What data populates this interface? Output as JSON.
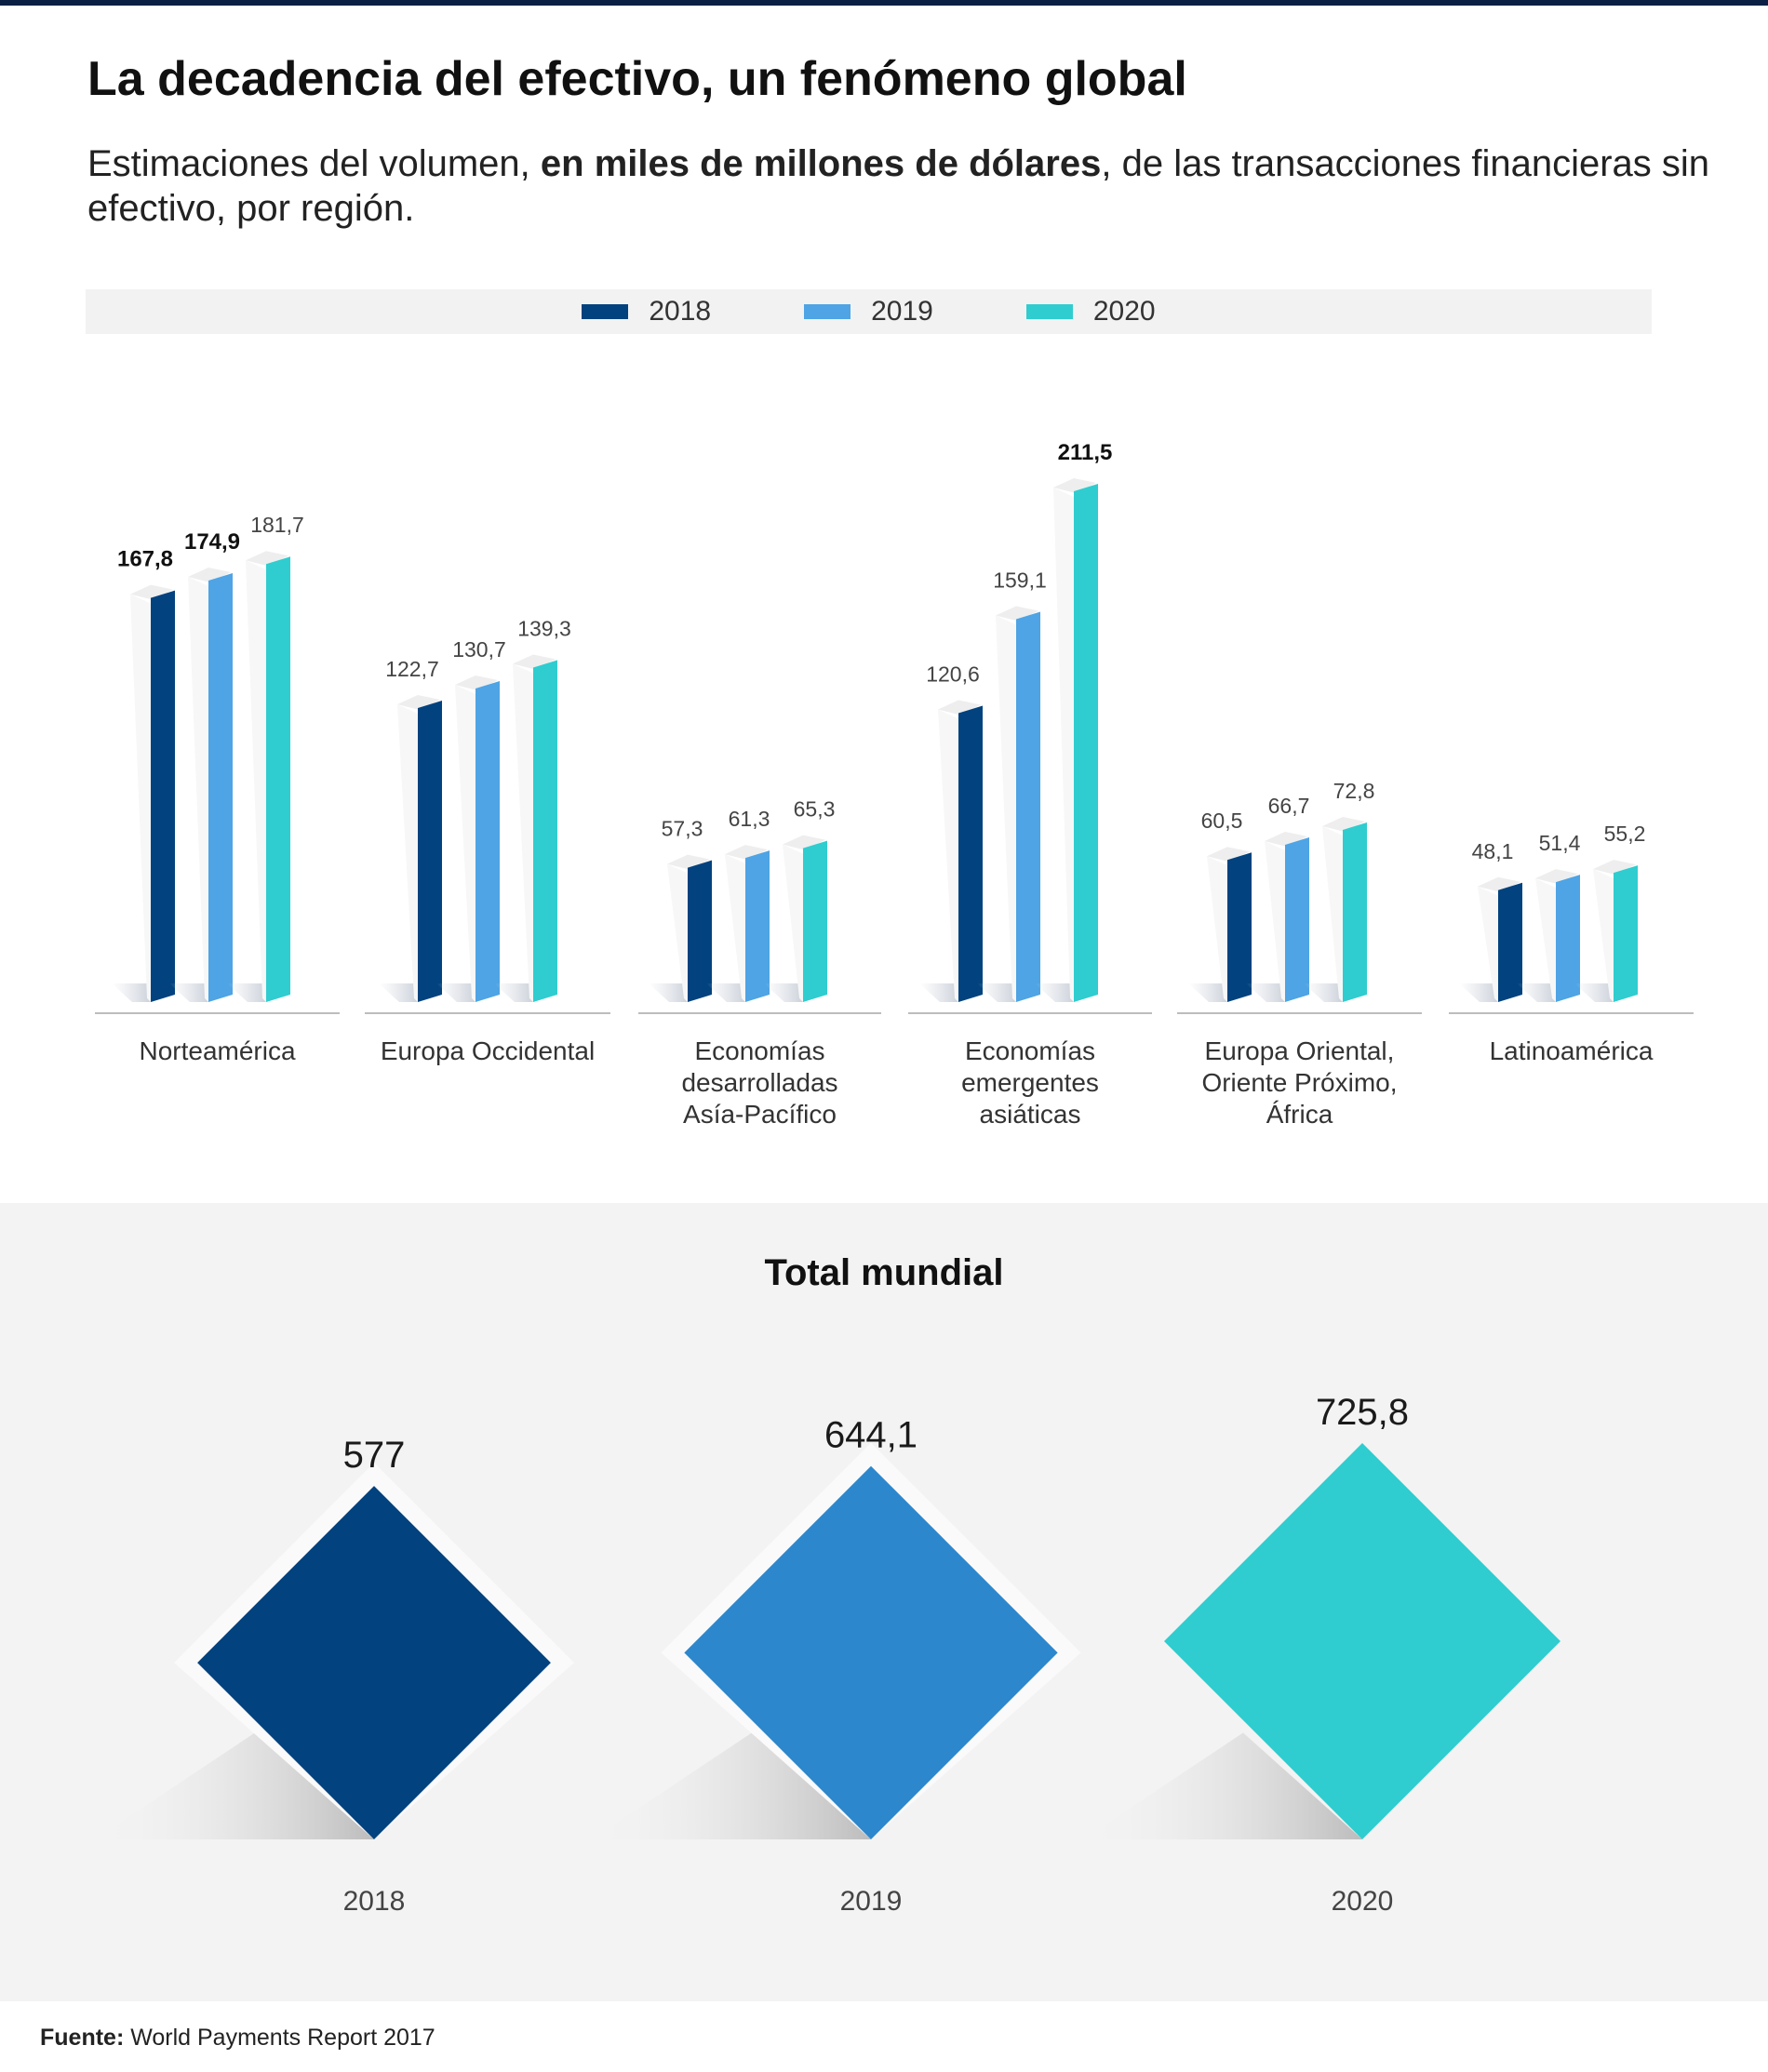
{
  "header": {
    "title": "La decadencia del efectivo, un fenómeno global",
    "subtitle_pre": "Estimaciones del volumen, ",
    "subtitle_bold": "en miles de millones de dólares",
    "subtitle_post": ", de las transacciones financieras sin efectivo, por región."
  },
  "colors": {
    "2018": "#02427e",
    "2019": "#4ea4e4",
    "2020": "#2fcdcf",
    "total_2019": "#2d87cc",
    "top_rule": "#0b1f44",
    "panel_background": "#f3f3f3"
  },
  "legend": [
    {
      "label": "2018",
      "color": "#02427e"
    },
    {
      "label": "2019",
      "color": "#4ea4e4"
    },
    {
      "label": "2020",
      "color": "#2fcdcf"
    }
  ],
  "chart_data": [
    {
      "type": "bar",
      "title": "",
      "xlabel": "",
      "ylabel": "",
      "grid": false,
      "legend_position": "top-center",
      "ylim": [
        0,
        211.5
      ],
      "categories": [
        [
          "Norteamérica"
        ],
        [
          "Europa Occidental"
        ],
        [
          "Economías",
          "desarrolladas",
          "Asía-Pacífico"
        ],
        [
          "Economías",
          "emergentes",
          "asiáticas"
        ],
        [
          "Europa Oriental,",
          "Oriente Próximo,",
          "África"
        ],
        [
          "Latinoamérica"
        ]
      ],
      "series": [
        {
          "name": "2018",
          "color": "#02427e",
          "values": [
            167.8,
            122.7,
            57.3,
            120.6,
            60.5,
            48.1
          ],
          "labels": [
            "167,8",
            "122,7",
            "57,3",
            "120,6",
            "60,5",
            "48,1"
          ]
        },
        {
          "name": "2019",
          "color": "#4ea4e4",
          "values": [
            174.9,
            130.7,
            61.3,
            159.1,
            66.7,
            51.4
          ],
          "labels": [
            "174,9",
            "130,7",
            "61,3",
            "159,1",
            "66,7",
            "51,4"
          ]
        },
        {
          "name": "2020",
          "color": "#2fcdcf",
          "values": [
            181.7,
            139.3,
            65.3,
            211.5,
            72.8,
            55.2
          ],
          "labels": [
            "181,7",
            "139,3",
            "65,3",
            "211,5",
            "72,8",
            "55,2"
          ]
        }
      ],
      "bold_labels": [
        "167,8",
        "174,9",
        "211,5"
      ]
    },
    {
      "type": "bar",
      "title": "Total mundial",
      "categories": [
        "2018",
        "2019",
        "2020"
      ],
      "values": [
        577,
        644.1,
        725.8
      ],
      "labels": [
        "577",
        "644,1",
        "725,8"
      ],
      "colors": [
        "#02427e",
        "#2d87cc",
        "#2fcdcf"
      ]
    }
  ],
  "source": {
    "label": "Fuente:",
    "text": " World Payments Report 2017"
  }
}
